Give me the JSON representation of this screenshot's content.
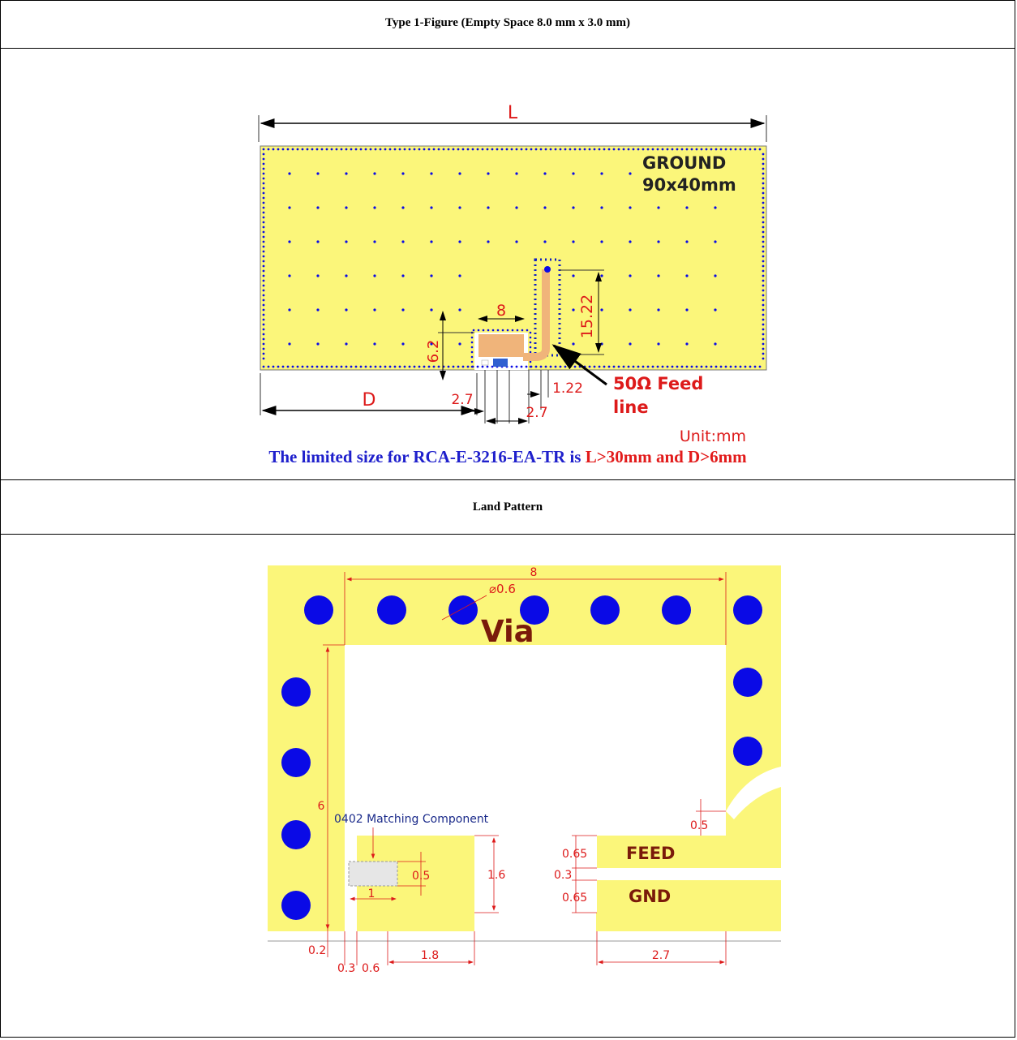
{
  "figure1": {
    "header": "Type 1-Figure (Empty Space 8.0 mm x 3.0 mm)",
    "dim_L": "L",
    "dim_D": "D",
    "ground_line1": "GROUND",
    "ground_line2": "90x40mm",
    "dim_8": "8",
    "dim_6_2": "6.2",
    "dim_15_22": "15.22",
    "dim_1_22": "1.22",
    "dim_2_7a": "2.7",
    "dim_2_7b": "2.7",
    "feed_line1": "50Ω Feed",
    "feed_line2": "line",
    "unit": "Unit:mm",
    "limit_blue": "The limited size for RCA-E-3216-EA-TR is ",
    "limit_red": "L>30mm and D>6mm"
  },
  "figure2": {
    "header": "Land Pattern",
    "dim_8": "8",
    "dim_via_dia": "⌀0.6",
    "via_label": "Via",
    "dim_6": "6",
    "matching_label": "0402 Matching Component",
    "dim_0_5a": "0.5",
    "dim_1": "1",
    "dim_1_6": "1.6",
    "dim_0_5b": "0.5",
    "dim_0_65a": "0.65",
    "feed_label": "FEED",
    "dim_0_3a": "0.3",
    "dim_0_65b": "0.65",
    "gnd_label": "GND",
    "dim_0_2": "0.2",
    "dim_0_3b": "0.3",
    "dim_0_6": "0.6",
    "dim_1_8": "1.8",
    "dim_2_7": "2.7"
  },
  "colors": {
    "board": "#fbf67a",
    "via": "#0a0ae6",
    "dimension": "#dd1a1a",
    "pad_label": "#7a1a0a",
    "feed_trace": "#f0b47a"
  }
}
